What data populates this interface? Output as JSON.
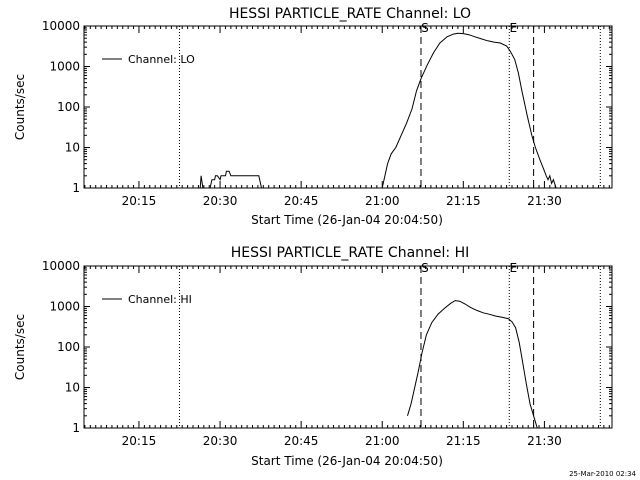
{
  "footer": {
    "timestamp": "25-Mar-2010 02:34"
  },
  "chart_data": [
    {
      "type": "line",
      "title": "HESSI PARTICLE_RATE Channel: LO",
      "xlabel": "Start Time (26-Jan-04 20:04:50)",
      "ylabel": "Counts/sec",
      "yscale": "log",
      "ylim": [
        1,
        10000
      ],
      "xlim": [
        "20:04:50",
        "21:42:30"
      ],
      "xticks": [
        "20:15",
        "20:30",
        "20:45",
        "21:00",
        "21:15",
        "21:30"
      ],
      "yticks": [
        "1",
        "10",
        "100",
        "1000",
        "10000"
      ],
      "legend": {
        "location": "top-left",
        "entries": [
          "Channel: LO"
        ]
      },
      "vlines": [
        {
          "x": "20:22:30",
          "style": "dotted",
          "label": ""
        },
        {
          "x": "21:07:10",
          "style": "dashed",
          "label": "S"
        },
        {
          "x": "21:23:30",
          "style": "dotted",
          "label": "E"
        },
        {
          "x": "21:28:00",
          "style": "dashed",
          "label": ""
        },
        {
          "x": "21:40:20",
          "style": "dotted",
          "label": ""
        }
      ],
      "series": [
        {
          "name": "Channel: LO",
          "segments": [
            {
              "x": [
                "20:26:20",
                "20:26:30",
                "20:26:50"
              ],
              "y": [
                1,
                2,
                1
              ]
            },
            {
              "x": [
                "20:28:10",
                "20:28:30",
                "20:29:00",
                "20:29:10",
                "20:29:30",
                "20:30:00",
                "20:30:10",
                "20:31:00",
                "20:31:10",
                "20:31:40",
                "20:32:00",
                "20:34:00",
                "20:35:00",
                "20:36:30",
                "20:37:10",
                "20:37:40"
              ],
              "y": [
                1,
                1.6,
                1.6,
                2,
                2,
                1.6,
                2,
                2,
                2.6,
                2.6,
                2,
                2,
                2,
                2,
                2,
                1
              ]
            },
            {
              "x": [
                "21:00:00",
                "21:01:00",
                "21:01:40",
                "21:02:30",
                "21:03:30",
                "21:04:30",
                "21:05:30",
                "21:06:20",
                "21:07:10",
                "21:08:20",
                "21:09:30",
                "21:10:40",
                "21:12:00",
                "21:13:10",
                "21:14:00",
                "21:15:00",
                "21:16:00",
                "21:17:10",
                "21:18:20",
                "21:19:30",
                "21:20:40",
                "21:21:50",
                "21:23:00",
                "21:23:40",
                "21:24:30",
                "21:25:10",
                "21:25:50",
                "21:26:50",
                "21:27:40",
                "21:28:20",
                "21:29:10",
                "21:29:50",
                "21:30:20",
                "21:30:40",
                "21:31:00",
                "21:31:20",
                "21:31:40",
                "21:32:10"
              ],
              "y": [
                1,
                4,
                7,
                10,
                20,
                40,
                90,
                250,
                500,
                1100,
                2200,
                3800,
                5400,
                6300,
                6600,
                6500,
                6100,
                5400,
                4800,
                4300,
                4000,
                3800,
                3200,
                2400,
                1500,
                700,
                250,
                60,
                20,
                10,
                5,
                3,
                2,
                1.6,
                2,
                1.3,
                1.6,
                1
              ]
            }
          ]
        }
      ]
    },
    {
      "type": "line",
      "title": "HESSI PARTICLE_RATE Channel: HI",
      "xlabel": "Start Time (26-Jan-04 20:04:50)",
      "ylabel": "Counts/sec",
      "yscale": "log",
      "ylim": [
        1,
        10000
      ],
      "xlim": [
        "20:04:50",
        "21:42:30"
      ],
      "xticks": [
        "20:15",
        "20:30",
        "20:45",
        "21:00",
        "21:15",
        "21:30"
      ],
      "yticks": [
        "1",
        "10",
        "100",
        "1000",
        "10000"
      ],
      "legend": {
        "location": "top-left",
        "entries": [
          "Channel: HI"
        ]
      },
      "vlines": [
        {
          "x": "20:22:30",
          "style": "dotted",
          "label": ""
        },
        {
          "x": "21:07:10",
          "style": "dashed",
          "label": "S"
        },
        {
          "x": "21:23:30",
          "style": "dotted",
          "label": "E"
        },
        {
          "x": "21:28:00",
          "style": "dashed",
          "label": ""
        },
        {
          "x": "21:40:20",
          "style": "dotted",
          "label": ""
        }
      ],
      "series": [
        {
          "name": "Channel: HI",
          "segments": [
            {
              "x": [
                "21:04:40",
                "21:05:20",
                "21:06:00",
                "21:06:40",
                "21:07:20",
                "21:08:10",
                "21:09:10",
                "21:10:20",
                "21:11:30",
                "21:12:40",
                "21:13:30",
                "21:14:20",
                "21:15:20",
                "21:16:20",
                "21:17:30",
                "21:18:40",
                "21:19:50",
                "21:21:00",
                "21:22:10",
                "21:23:20",
                "21:24:00",
                "21:24:40",
                "21:25:20",
                "21:26:00",
                "21:26:40",
                "21:27:20",
                "21:28:00",
                "21:28:40"
              ],
              "y": [
                2,
                4,
                10,
                25,
                70,
                200,
                400,
                650,
                900,
                1200,
                1400,
                1350,
                1150,
                950,
                800,
                700,
                640,
                580,
                540,
                500,
                420,
                300,
                130,
                40,
                12,
                4,
                2,
                1
              ]
            }
          ]
        }
      ]
    }
  ]
}
